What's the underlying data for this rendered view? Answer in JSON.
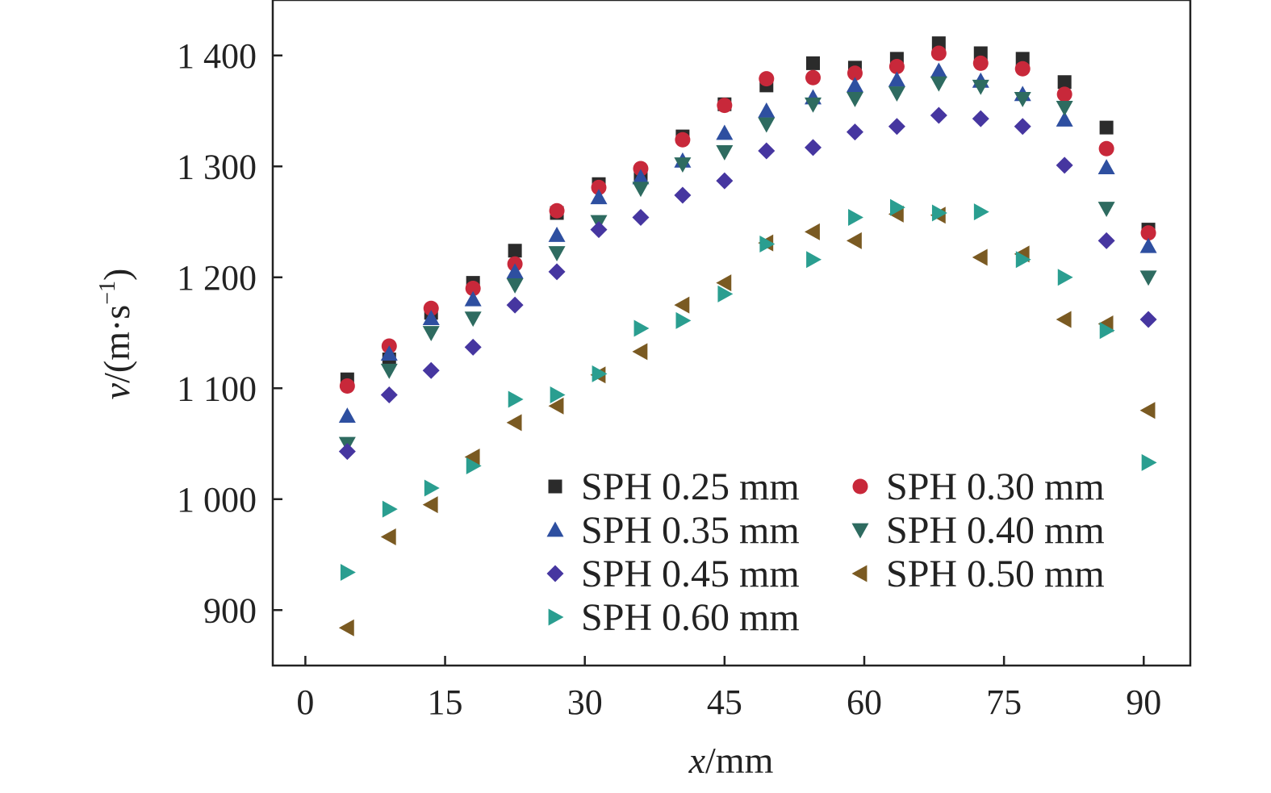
{
  "chart_data": {
    "type": "scatter",
    "title": "",
    "xlabel": {
      "var": "x",
      "unit": "/mm"
    },
    "ylabel": {
      "var": "v",
      "unit_prefix": "/(m·s",
      "unit_sup": "−1",
      "unit_suffix": ")"
    },
    "xlim": [
      -3.5,
      95
    ],
    "ylim": [
      850,
      1450
    ],
    "x_ticks": [
      0,
      15,
      30,
      45,
      60,
      75,
      90
    ],
    "x_tick_labels": [
      "0",
      "15",
      "30",
      "45",
      "60",
      "75",
      "90"
    ],
    "y_ticks": [
      900,
      1000,
      1100,
      1200,
      1300,
      1400
    ],
    "y_tick_labels": [
      "900",
      "1 000",
      "1 100",
      "1 200",
      "1 300",
      "1 400"
    ],
    "grid": false,
    "legend": {
      "position": "bottom-right",
      "columns": 2
    },
    "series": [
      {
        "name": "SPH 0.25 mm",
        "marker": "square",
        "color": "#2b2b2b",
        "points": [
          [
            4.5,
            1108
          ],
          [
            9,
            1126
          ],
          [
            13.5,
            1168
          ],
          [
            18,
            1195
          ],
          [
            22.5,
            1224
          ],
          [
            27,
            1258
          ],
          [
            31.5,
            1284
          ],
          [
            36,
            1293
          ],
          [
            40.5,
            1327
          ],
          [
            45,
            1356
          ],
          [
            49.5,
            1373
          ],
          [
            54.5,
            1393
          ],
          [
            59,
            1389
          ],
          [
            63.5,
            1397
          ],
          [
            68,
            1411
          ],
          [
            72.5,
            1402
          ],
          [
            77,
            1397
          ],
          [
            81.5,
            1376
          ],
          [
            86,
            1335
          ],
          [
            90.5,
            1243
          ]
        ]
      },
      {
        "name": "SPH 0.30 mm",
        "marker": "circle",
        "color": "#c8283a",
        "points": [
          [
            4.5,
            1102
          ],
          [
            9,
            1138
          ],
          [
            13.5,
            1172
          ],
          [
            18,
            1190
          ],
          [
            22.5,
            1212
          ],
          [
            27,
            1260
          ],
          [
            31.5,
            1281
          ],
          [
            36,
            1298
          ],
          [
            40.5,
            1324
          ],
          [
            45,
            1355
          ],
          [
            49.5,
            1379
          ],
          [
            54.5,
            1380
          ],
          [
            59,
            1384
          ],
          [
            63.5,
            1390
          ],
          [
            68,
            1402
          ],
          [
            72.5,
            1393
          ],
          [
            77,
            1388
          ],
          [
            81.5,
            1365
          ],
          [
            86,
            1316
          ],
          [
            90.5,
            1240
          ]
        ]
      },
      {
        "name": "SPH 0.35 mm",
        "marker": "triangle-up",
        "color": "#2e4fa0",
        "points": [
          [
            4.5,
            1075
          ],
          [
            9,
            1131
          ],
          [
            13.5,
            1163
          ],
          [
            18,
            1180
          ],
          [
            22.5,
            1205
          ],
          [
            27,
            1238
          ],
          [
            31.5,
            1272
          ],
          [
            36,
            1290
          ],
          [
            40.5,
            1305
          ],
          [
            45,
            1330
          ],
          [
            49.5,
            1350
          ],
          [
            54.5,
            1362
          ],
          [
            59,
            1373
          ],
          [
            63.5,
            1378
          ],
          [
            68,
            1386
          ],
          [
            72.5,
            1377
          ],
          [
            77,
            1365
          ],
          [
            81.5,
            1342
          ],
          [
            86,
            1299
          ],
          [
            90.5,
            1228
          ]
        ]
      },
      {
        "name": "SPH 0.40 mm",
        "marker": "triangle-down",
        "color": "#2e6b60",
        "points": [
          [
            4.5,
            1050
          ],
          [
            9,
            1116
          ],
          [
            13.5,
            1150
          ],
          [
            18,
            1163
          ],
          [
            22.5,
            1193
          ],
          [
            27,
            1222
          ],
          [
            31.5,
            1250
          ],
          [
            36,
            1280
          ],
          [
            40.5,
            1302
          ],
          [
            45,
            1313
          ],
          [
            49.5,
            1338
          ],
          [
            54.5,
            1356
          ],
          [
            59,
            1361
          ],
          [
            63.5,
            1366
          ],
          [
            68,
            1375
          ],
          [
            72.5,
            1372
          ],
          [
            77,
            1361
          ],
          [
            81.5,
            1353
          ],
          [
            86,
            1262
          ],
          [
            90.5,
            1200
          ]
        ]
      },
      {
        "name": "SPH 0.45 mm",
        "marker": "diamond",
        "color": "#4636a0",
        "points": [
          [
            4.5,
            1043
          ],
          [
            9,
            1094
          ],
          [
            13.5,
            1116
          ],
          [
            18,
            1137
          ],
          [
            22.5,
            1175
          ],
          [
            27,
            1205
          ],
          [
            31.5,
            1243
          ],
          [
            36,
            1254
          ],
          [
            40.5,
            1274
          ],
          [
            45,
            1287
          ],
          [
            49.5,
            1314
          ],
          [
            54.5,
            1317
          ],
          [
            59,
            1331
          ],
          [
            63.5,
            1336
          ],
          [
            68,
            1346
          ],
          [
            72.5,
            1343
          ],
          [
            77,
            1336
          ],
          [
            81.5,
            1301
          ],
          [
            86,
            1233
          ],
          [
            90.5,
            1162
          ]
        ]
      },
      {
        "name": "SPH 0.50 mm",
        "marker": "triangle-left",
        "color": "#7a5a22",
        "points": [
          [
            4.5,
            884
          ],
          [
            9,
            966
          ],
          [
            13.5,
            995
          ],
          [
            18,
            1038
          ],
          [
            22.5,
            1069
          ],
          [
            27,
            1084
          ],
          [
            31.5,
            1112
          ],
          [
            36,
            1133
          ],
          [
            40.5,
            1175
          ],
          [
            45,
            1195
          ],
          [
            49.5,
            1231
          ],
          [
            54.5,
            1241
          ],
          [
            59,
            1233
          ],
          [
            63.5,
            1257
          ],
          [
            68,
            1256
          ],
          [
            72.5,
            1218
          ],
          [
            77,
            1221
          ],
          [
            81.5,
            1162
          ],
          [
            86,
            1158
          ],
          [
            90.5,
            1080
          ]
        ]
      },
      {
        "name": "SPH 0.60 mm",
        "marker": "triangle-right",
        "color": "#2a9e90",
        "points": [
          [
            4.5,
            934
          ],
          [
            9,
            991
          ],
          [
            13.5,
            1010
          ],
          [
            18,
            1030
          ],
          [
            22.5,
            1090
          ],
          [
            27,
            1094
          ],
          [
            31.5,
            1113
          ],
          [
            36,
            1154
          ],
          [
            40.5,
            1161
          ],
          [
            45,
            1185
          ],
          [
            49.5,
            1230
          ],
          [
            54.5,
            1216
          ],
          [
            59,
            1254
          ],
          [
            63.5,
            1263
          ],
          [
            68,
            1258
          ],
          [
            72.5,
            1259
          ],
          [
            77,
            1216
          ],
          [
            81.5,
            1200
          ],
          [
            86,
            1152
          ],
          [
            90.5,
            1033
          ]
        ]
      }
    ]
  }
}
